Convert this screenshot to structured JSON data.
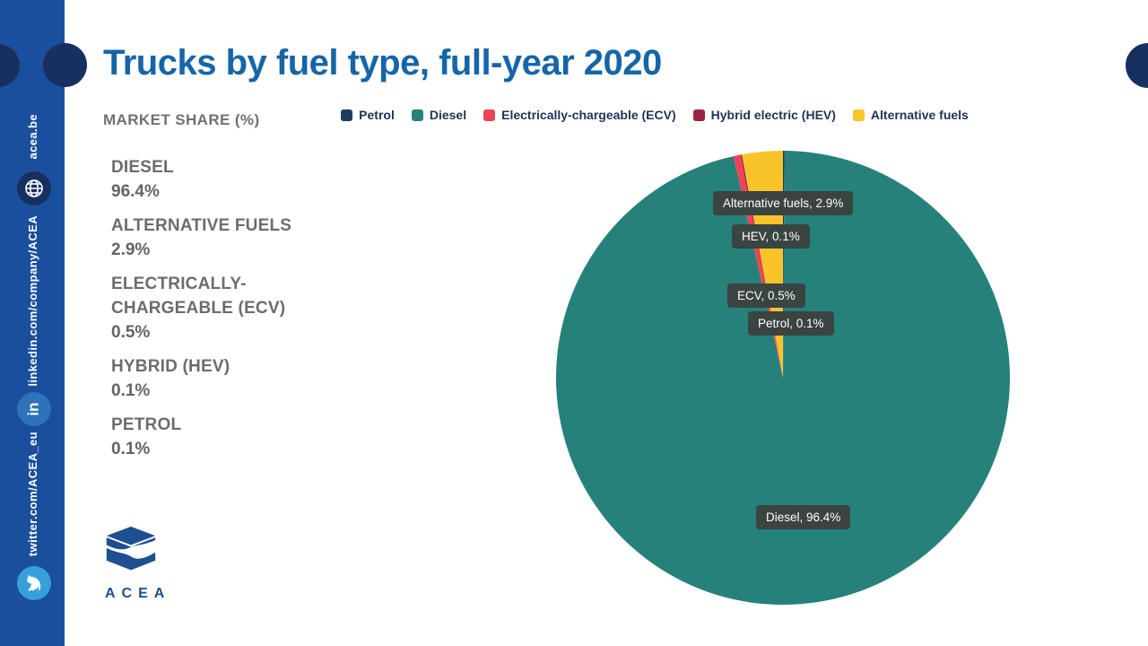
{
  "page": {
    "title": "Trucks by fuel type, full-year 2020"
  },
  "subtitle": "MARKET SHARE (%)",
  "sidebar": {
    "website": "acea.be",
    "linkedin": "linkedin.com/company/ACEA",
    "twitter": "twitter.com/ACEA_eu"
  },
  "logo": {
    "text": "ACEA"
  },
  "stats": [
    {
      "label": "DIESEL",
      "value": "96.4%"
    },
    {
      "label": "ALTERNATIVE FUELS",
      "value": "2.9%"
    },
    {
      "label": "ELECTRICALLY-CHARGEABLE (ECV)",
      "value": "0.5%"
    },
    {
      "label": "HYBRID (HEV)",
      "value": "0.1%"
    },
    {
      "label": "PETROL",
      "value": "0.1%"
    }
  ],
  "chart_data": {
    "type": "pie",
    "title": "Trucks by fuel type, full-year 2020",
    "unit": "market share %",
    "start_angle_deg": 0,
    "direction": "clockwise",
    "legend_position": "top",
    "slices": [
      {
        "label": "Petrol",
        "value": 0.1,
        "color": "#1d3c5e"
      },
      {
        "label": "Diesel",
        "value": 96.4,
        "color": "#26817b"
      },
      {
        "label": "Electrically-chargeable (ECV)",
        "value": 0.5,
        "color": "#ee4357"
      },
      {
        "label": "Hybrid electric (HEV)",
        "value": 0.1,
        "color": "#9b2342"
      },
      {
        "label": "Alternative fuels",
        "value": 2.9,
        "color": "#f9c32a"
      }
    ],
    "callouts": {
      "alt": "Alternative fuels, 2.9%",
      "hev": "HEV, 0.1%",
      "ecv": "ECV, 0.5%",
      "petrol": "Petrol, 0.1%",
      "diesel": "Diesel, 96.4%"
    }
  },
  "colors": {
    "sidebar": "#1a4f9d",
    "navy_circle": "#17305f",
    "title_blue": "#1565a9",
    "gray_text": "#6b6c6e",
    "callout_bg": "#3a4441",
    "linkedin_circle": "#2e73b8",
    "twitter_circle": "#36a0d9"
  }
}
